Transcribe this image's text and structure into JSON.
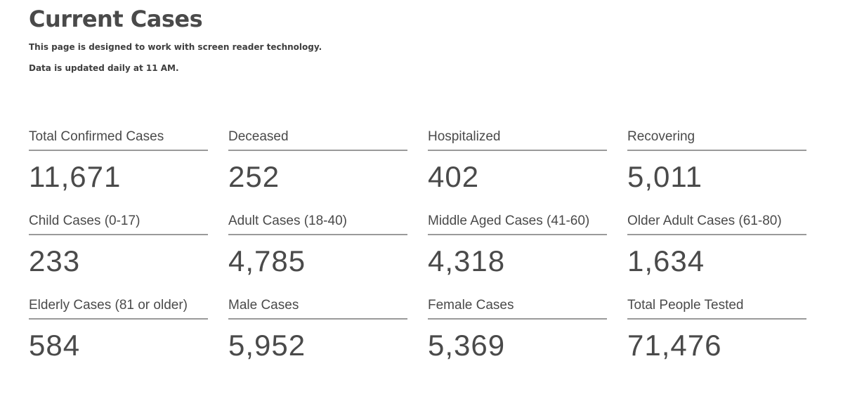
{
  "header": {
    "title": "Current Cases",
    "subtitle_1": "This page is designed to work with screen reader technology.",
    "subtitle_2": "Data is updated daily at 11 AM."
  },
  "stats": [
    {
      "label": "Total Confirmed Cases",
      "value": "11,671"
    },
    {
      "label": "Deceased",
      "value": "252"
    },
    {
      "label": "Hospitalized",
      "value": "402"
    },
    {
      "label": "Recovering",
      "value": "5,011"
    },
    {
      "label": "Child Cases (0-17)",
      "value": "233"
    },
    {
      "label": "Adult Cases (18-40)",
      "value": "4,785"
    },
    {
      "label": "Middle Aged Cases (41-60)",
      "value": "4,318"
    },
    {
      "label": "Older Adult Cases (61-80)",
      "value": "1,634"
    },
    {
      "label": "Elderly Cases (81 or older)",
      "value": "584"
    },
    {
      "label": "Male Cases",
      "value": "5,952"
    },
    {
      "label": "Female Cases",
      "value": "5,369"
    },
    {
      "label": "Total People Tested",
      "value": "71,476"
    }
  ],
  "colors": {
    "text": "#4a4a4a",
    "divider": "#9a9a9a",
    "background": "#ffffff"
  }
}
